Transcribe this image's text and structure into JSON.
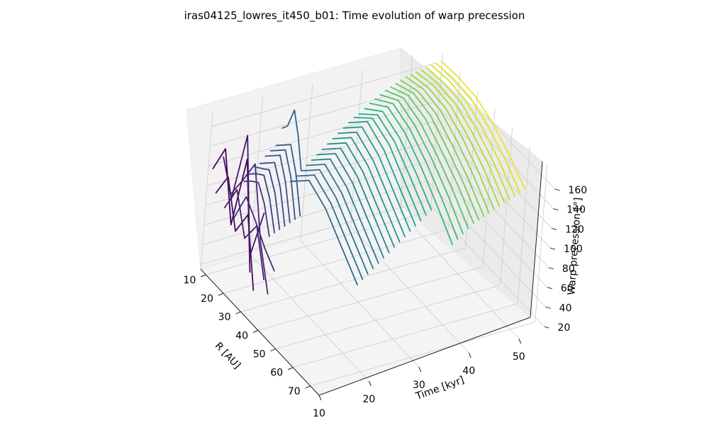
{
  "chart_data": {
    "type": "3d-line",
    "title": "iras04125_lowres_it450_b01: Time evolution of warp precession",
    "xlabel": "Time [kyr]",
    "ylabel": "R [AU]",
    "zlabel": "Warp precession [°]",
    "x_ticks": [
      "10",
      "20",
      "30",
      "40",
      "50"
    ],
    "y_ticks": [
      "10",
      "20",
      "30",
      "40",
      "50",
      "60",
      "70"
    ],
    "z_ticks": [
      "20",
      "40",
      "60",
      "80",
      "100",
      "120",
      "140",
      "160"
    ],
    "xlim": [
      10,
      55
    ],
    "ylim": [
      7,
      75
    ],
    "zlim": [
      15,
      175
    ],
    "grid": true,
    "colormap": "viridis",
    "colormap_variable": "Time [kyr]",
    "series_description": "one line per snapshot: warp precession vs radius",
    "series": [
      {
        "time": 10.5,
        "r": [
          8,
          14,
          20,
          26,
          32
        ],
        "precession": [
          118,
          150,
          84,
          162,
          58
        ]
      },
      {
        "time": 11.5,
        "r": [
          8,
          14,
          20,
          26,
          32
        ],
        "precession": [
          92,
          120,
          76,
          104,
          38
        ]
      },
      {
        "time": 12.5,
        "r": [
          8,
          14,
          20,
          26,
          32
        ],
        "precession": [
          128,
          96,
          172,
          60,
          116
        ]
      },
      {
        "time": 13.5,
        "r": [
          8,
          14,
          20,
          26,
          32
        ],
        "precession": [
          74,
          104,
          66,
          90,
          46
        ]
      },
      {
        "time": 14.5,
        "r": [
          8,
          14,
          20,
          26,
          32
        ],
        "precession": [
          86,
          112,
          140,
          72,
          30
        ]
      },
      {
        "time": 15.5,
        "r": [
          8,
          14,
          20,
          26,
          32
        ],
        "precession": [
          60,
          94,
          80,
          64,
          52
        ]
      },
      {
        "time": 17.0,
        "r": [
          8,
          12,
          16,
          20,
          24
        ],
        "precession": [
          96,
          104,
          110,
          96,
          70
        ]
      },
      {
        "time": 18.0,
        "r": [
          8,
          12,
          16,
          20,
          24
        ],
        "precession": [
          102,
          110,
          116,
          100,
          72
        ]
      },
      {
        "time": 19.0,
        "r": [
          8,
          12,
          16,
          20,
          24
        ],
        "precession": [
          108,
          114,
          120,
          104,
          74
        ]
      },
      {
        "time": 20.0,
        "r": [
          8,
          12,
          16,
          20,
          24
        ],
        "precession": [
          110,
          118,
          126,
          108,
          76
        ]
      },
      {
        "time": 21.0,
        "r": [
          8,
          12,
          16,
          20,
          24
        ],
        "precession": [
          116,
          124,
          132,
          112,
          78
        ]
      },
      {
        "time": 22.0,
        "r": [
          8,
          12,
          16,
          20,
          24
        ],
        "precession": [
          120,
          128,
          136,
          116,
          80
        ]
      },
      {
        "time": 23.0,
        "r": [
          8,
          12,
          16,
          20,
          24
        ],
        "precession": [
          124,
          132,
          140,
          118,
          82
        ]
      },
      {
        "time": 24.0,
        "r": [
          8,
          11,
          14,
          17,
          20
        ],
        "precession": [
          140,
          148,
          170,
          150,
          120
        ]
      },
      {
        "time": 25.0,
        "r": [
          12,
          22,
          32,
          42,
          52
        ],
        "precession": [
          92,
          112,
          102,
          82,
          62
        ]
      },
      {
        "time": 26.0,
        "r": [
          12,
          22,
          32,
          42,
          52
        ],
        "precession": [
          96,
          116,
          106,
          86,
          66
        ]
      },
      {
        "time": 27.0,
        "r": [
          12,
          22,
          32,
          42,
          52
        ],
        "precession": [
          100,
          120,
          110,
          90,
          70
        ]
      },
      {
        "time": 28.0,
        "r": [
          12,
          22,
          32,
          42,
          52
        ],
        "precession": [
          104,
          124,
          114,
          94,
          74
        ]
      },
      {
        "time": 29.0,
        "r": [
          12,
          22,
          32,
          42,
          52
        ],
        "precession": [
          108,
          128,
          118,
          98,
          78
        ]
      },
      {
        "time": 30.0,
        "r": [
          12,
          22,
          32,
          42,
          52
        ],
        "precession": [
          112,
          132,
          122,
          102,
          82
        ]
      },
      {
        "time": 31.0,
        "r": [
          12,
          22,
          32,
          42,
          52
        ],
        "precession": [
          116,
          136,
          126,
          106,
          86
        ]
      },
      {
        "time": 32.0,
        "r": [
          12,
          22,
          32,
          42,
          52
        ],
        "precession": [
          120,
          140,
          130,
          110,
          90
        ]
      },
      {
        "time": 33.0,
        "r": [
          12,
          22,
          32,
          42,
          52
        ],
        "precession": [
          124,
          144,
          134,
          114,
          94
        ]
      },
      {
        "time": 34.0,
        "r": [
          12,
          22,
          32,
          42,
          52
        ],
        "precession": [
          128,
          148,
          138,
          118,
          98
        ]
      },
      {
        "time": 35.0,
        "r": [
          12,
          22,
          32,
          42,
          52
        ],
        "precession": [
          132,
          152,
          142,
          122,
          102
        ]
      },
      {
        "time": 36.0,
        "r": [
          12,
          22,
          32,
          42,
          52
        ],
        "precession": [
          136,
          156,
          146,
          126,
          106
        ]
      },
      {
        "time": 37.0,
        "r": [
          12,
          22,
          32,
          42,
          52
        ],
        "precession": [
          140,
          158,
          150,
          130,
          110
        ]
      },
      {
        "time": 38.0,
        "r": [
          12,
          22,
          32,
          42,
          52
        ],
        "precession": [
          142,
          160,
          152,
          134,
          114
        ]
      },
      {
        "time": 39.0,
        "r": [
          12,
          22,
          32,
          42,
          52
        ],
        "precession": [
          146,
          162,
          154,
          138,
          118
        ]
      },
      {
        "time": 40.0,
        "r": [
          12,
          22,
          32,
          42,
          52,
          62
        ],
        "precession": [
          150,
          165,
          158,
          142,
          122,
          100
        ]
      },
      {
        "time": 41.0,
        "r": [
          12,
          22,
          32,
          42,
          52,
          62
        ],
        "precession": [
          153,
          167,
          160,
          145,
          126,
          104
        ]
      },
      {
        "time": 42.0,
        "r": [
          12,
          22,
          32,
          42,
          52,
          62
        ],
        "precession": [
          156,
          169,
          162,
          148,
          130,
          108
        ]
      },
      {
        "time": 43.0,
        "r": [
          12,
          22,
          32,
          42,
          52,
          62
        ],
        "precession": [
          159,
          170,
          164,
          150,
          133,
          112
        ]
      },
      {
        "time": 44.0,
        "r": [
          12,
          22,
          32,
          42,
          52,
          62
        ],
        "precession": [
          161,
          171,
          166,
          152,
          136,
          116
        ]
      },
      {
        "time": 45.0,
        "r": [
          12,
          22,
          32,
          42,
          52,
          62
        ],
        "precession": [
          163,
          172,
          168,
          154,
          138,
          118
        ]
      },
      {
        "time": 46.0,
        "r": [
          12,
          22,
          32,
          42,
          52,
          62
        ],
        "precession": [
          165,
          172,
          169,
          156,
          140,
          120
        ]
      },
      {
        "time": 47.0,
        "r": [
          12,
          22,
          32,
          42,
          52,
          62
        ],
        "precession": [
          167,
          173,
          170,
          158,
          142,
          122
        ]
      },
      {
        "time": 48.0,
        "r": [
          12,
          22,
          32,
          42,
          52,
          62
        ],
        "precession": [
          168,
          173,
          171,
          160,
          144,
          124
        ]
      },
      {
        "time": 49.0,
        "r": [
          12,
          22,
          32,
          42,
          52,
          62
        ],
        "precession": [
          169,
          174,
          172,
          161,
          146,
          126
        ]
      },
      {
        "time": 50.0,
        "r": [
          12,
          22,
          32,
          42,
          52,
          62
        ],
        "precession": [
          170,
          174,
          172,
          162,
          148,
          128
        ]
      },
      {
        "time": 51.0,
        "r": [
          12,
          22,
          32,
          42,
          52,
          62
        ],
        "precession": [
          171,
          174,
          173,
          163,
          149,
          130
        ]
      },
      {
        "time": 52.0,
        "r": [
          12,
          22,
          32,
          42,
          52,
          62
        ],
        "precession": [
          172,
          175,
          173,
          164,
          150,
          132
        ]
      },
      {
        "time": 53.0,
        "r": [
          12,
          22,
          32,
          42,
          52,
          62
        ],
        "precession": [
          172,
          175,
          174,
          165,
          152,
          134
        ]
      },
      {
        "time": 54.0,
        "r": [
          12,
          22,
          32,
          42,
          52,
          62
        ],
        "precession": [
          173,
          175,
          174,
          166,
          153,
          136
        ]
      }
    ]
  }
}
